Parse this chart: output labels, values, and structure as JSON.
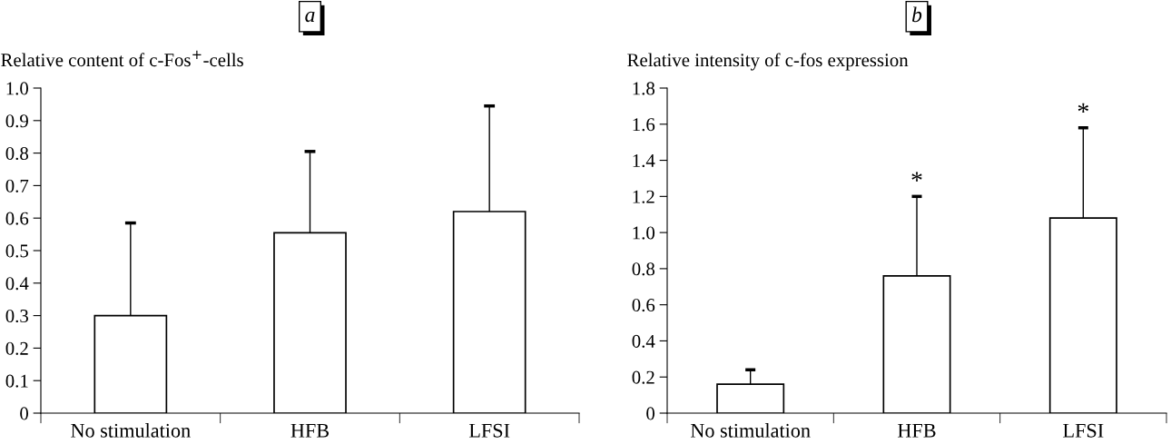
{
  "chart_data": [
    {
      "type": "bar",
      "title": "a",
      "ylabel": "Relative content of c-Fos$^{+}$-cells",
      "categories": [
        "No stimulation",
        "HFB",
        "LFSI"
      ],
      "values": [
        0.3,
        0.555,
        0.62
      ],
      "errors": [
        [
          0.3,
          0.585
        ],
        [
          0.555,
          0.805
        ],
        [
          0.62,
          0.945
        ]
      ],
      "color": "#ffffff",
      "ylim": [
        0,
        1.0
      ],
      "yticks": [
        0,
        0.1,
        0.2,
        0.3,
        0.4,
        0.5,
        0.6,
        0.7,
        0.8,
        0.9,
        {
          "value": 1.0,
          "label": "1.0"
        }
      ],
      "grid": false,
      "legend": false
    },
    {
      "type": "bar",
      "title": "b",
      "ylabel": "Relative intensity of c-fos expression",
      "categories": [
        "No stimulation",
        "HFB",
        "LFSI"
      ],
      "values": [
        0.16,
        0.76,
        1.08
      ],
      "errors": [
        [
          0.16,
          0.24
        ],
        [
          0.76,
          1.2
        ],
        [
          1.08,
          1.58
        ]
      ],
      "color": "#ffffff",
      "ylim": [
        0,
        1.8
      ],
      "yticks": [
        0,
        0.2,
        0.4,
        0.6,
        0.8,
        {
          "value": 1.0,
          "label": "1.0"
        },
        1.2,
        1.4,
        1.6,
        1.8
      ],
      "grid": false,
      "legend": false,
      "annotations": [
        "*",
        "*"
      ]
    }
  ]
}
